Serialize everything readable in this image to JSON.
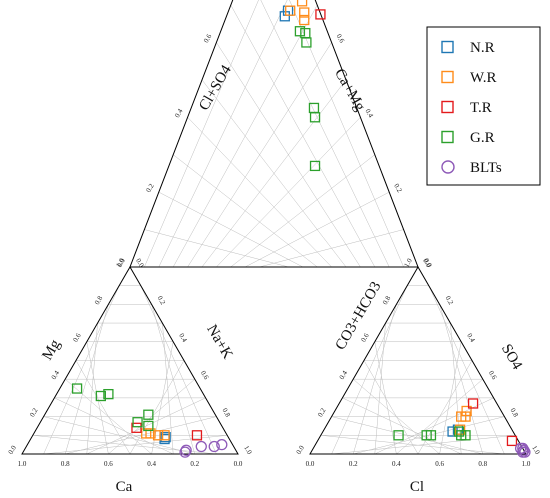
{
  "chart_data": {
    "type": "piper",
    "title": "",
    "axes": {
      "cation_bottom": "Ca",
      "cation_left": "Mg",
      "cation_right": "Na+K",
      "anion_bottom": "Cl",
      "anion_left": "CO3+HCO3",
      "anion_right": "SO4",
      "diamond_left": "Cl+SO4",
      "diamond_right": "Ca+Mg"
    },
    "ticks": [
      "0.0",
      "0.2",
      "0.4",
      "0.6",
      "0.8",
      "1.0"
    ],
    "legend": {
      "placement": "top-right",
      "entries": [
        {
          "name": "N.R",
          "color": "#1f77b4",
          "marker": "square"
        },
        {
          "name": "W.R",
          "color": "#ff8c1a",
          "marker": "square"
        },
        {
          "name": "T.R",
          "color": "#e31a1c",
          "marker": "square"
        },
        {
          "name": "G.R",
          "color": "#2ca02c",
          "marker": "square"
        },
        {
          "name": "BLTs",
          "color": "#8e5ab8",
          "marker": "circle"
        }
      ]
    },
    "series": [
      {
        "name": "N.R",
        "points": [
          {
            "cation": {
              "ca": 0.29,
              "mg": 0.09
            },
            "anion": {
              "cl": 0.6,
              "so4": 0.12
            }
          },
          {
            "cation": {
              "ca": 0.3,
              "mg": 0.08
            },
            "anion": {
              "cl": 0.62,
              "so4": 0.13
            }
          }
        ]
      },
      {
        "name": "W.R",
        "points": [
          {
            "cation": {
              "ca": 0.37,
              "mg": 0.11
            },
            "anion": {
              "cl": 0.6,
              "so4": 0.2
            }
          },
          {
            "cation": {
              "ca": 0.35,
              "mg": 0.11
            },
            "anion": {
              "cl": 0.62,
              "so4": 0.2
            }
          },
          {
            "cation": {
              "ca": 0.32,
              "mg": 0.1
            },
            "anion": {
              "cl": 0.61,
              "so4": 0.23
            }
          },
          {
            "cation": {
              "ca": 0.29,
              "mg": 0.1
            },
            "anion": {
              "cl": 0.63,
              "so4": 0.13
            }
          }
        ]
      },
      {
        "name": "T.R",
        "points": [
          {
            "cation": {
              "ca": 0.4,
              "mg": 0.14
            },
            "anion": {
              "cl": 0.62,
              "so4": 0.27
            }
          },
          {
            "cation": {
              "ca": 0.14,
              "mg": 0.1
            },
            "anion": {
              "cl": 0.9,
              "so4": 0.07
            }
          }
        ]
      },
      {
        "name": "G.R",
        "points": [
          {
            "cation": {
              "ca": 0.57,
              "mg": 0.35
            },
            "anion": {
              "cl": 0.36,
              "so4": 0.1
            }
          },
          {
            "cation": {
              "ca": 0.48,
              "mg": 0.31
            },
            "anion": {
              "cl": 0.49,
              "so4": 0.1
            }
          },
          {
            "cation": {
              "ca": 0.44,
              "mg": 0.32
            },
            "anion": {
              "cl": 0.51,
              "so4": 0.1
            }
          },
          {
            "cation": {
              "ca": 0.38,
              "mg": 0.17
            },
            "anion": {
              "cl": 0.65,
              "so4": 0.1
            }
          },
          {
            "cation": {
              "ca": 0.34,
              "mg": 0.15
            },
            "anion": {
              "cl": 0.63,
              "so4": 0.12
            }
          },
          {
            "cation": {
              "ca": 0.31,
              "mg": 0.21
            },
            "anion": {
              "cl": 0.67,
              "so4": 0.1
            }
          }
        ]
      },
      {
        "name": "BLTs",
        "points": [
          {
            "cation": {
              "ca": 0.05,
              "mg": 0.05
            },
            "anion": {
              "cl": 0.97,
              "so4": 0.03
            }
          },
          {
            "cation": {
              "ca": 0.09,
              "mg": 0.04
            },
            "anion": {
              "cl": 0.96,
              "so4": 0.03
            }
          },
          {
            "cation": {
              "ca": 0.15,
              "mg": 0.04
            },
            "anion": {
              "cl": 0.98,
              "so4": 0.02
            }
          },
          {
            "cation": {
              "ca": 0.23,
              "mg": 0.02
            },
            "anion": {
              "cl": 0.98,
              "so4": 0.01
            }
          },
          {
            "cation": {
              "ca": 0.24,
              "mg": 0.01
            },
            "anion": {
              "cl": 0.99,
              "so4": 0.01
            }
          }
        ]
      }
    ]
  }
}
